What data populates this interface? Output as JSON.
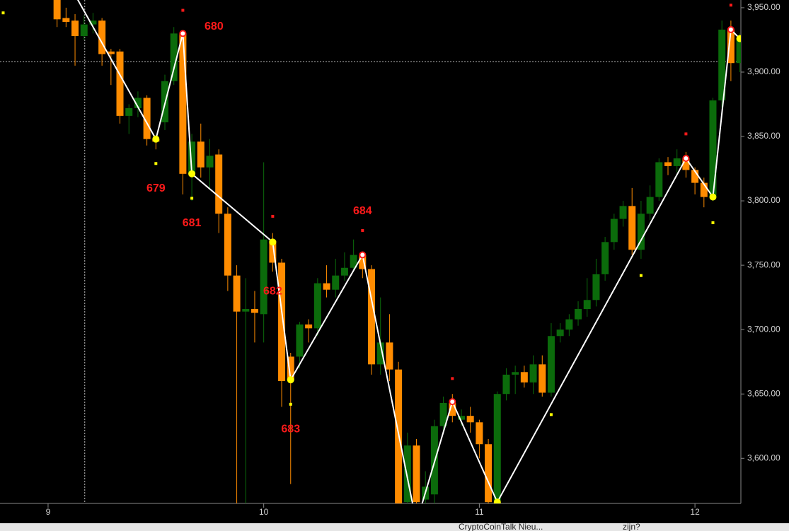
{
  "chart_data": {
    "type": "candlestick",
    "x": [
      9.0417,
      9.0833,
      9.125,
      9.1667,
      9.2083,
      9.25,
      9.2917,
      9.3333,
      9.375,
      9.4167,
      9.4583,
      9.5,
      9.5417,
      9.5833,
      9.625,
      9.6667,
      9.7083,
      9.75,
      9.7917,
      9.8333,
      9.875,
      9.9167,
      9.9583,
      10,
      10.0417,
      10.0833,
      10.125,
      10.1667,
      10.2083,
      10.25,
      10.2917,
      10.3333,
      10.375,
      10.4167,
      10.4583,
      10.5,
      10.5417,
      10.5833,
      10.625,
      10.6667,
      10.7083,
      10.75,
      10.7917,
      10.8333,
      10.875,
      10.9167,
      10.9583,
      11,
      11.0417,
      11.0833,
      11.125,
      11.1667,
      11.2083,
      11.25,
      11.2917,
      11.3333,
      11.375,
      11.4167,
      11.4583,
      11.5,
      11.5417,
      11.5833,
      11.625,
      11.6667,
      11.7083,
      11.75,
      11.7917,
      11.8333,
      11.875,
      11.9167,
      11.9583,
      12,
      12.0417,
      12.0833,
      12.125,
      12.1667,
      12.2083
    ],
    "open": [
      3957,
      3942,
      3940,
      3928,
      3937,
      3940,
      3916,
      3916,
      3866,
      3872,
      3880,
      3848,
      3861,
      3893,
      3930,
      3821,
      3846,
      3826,
      3836,
      3790,
      3742,
      3714,
      3716,
      3712,
      3769,
      3752,
      3679,
      3679,
      3704,
      3701,
      3736,
      3731,
      3742,
      3748,
      3758,
      3747,
      3673,
      3690,
      3669,
      3566,
      3610,
      3568,
      3572,
      3625,
      3643,
      3630,
      3633,
      3628,
      3611,
      3567,
      3650,
      3665,
      3667,
      3659,
      3673,
      3651,
      3695,
      3700,
      3708,
      3716,
      3723,
      3743,
      3768,
      3786,
      3796,
      3762,
      3790,
      3803,
      3830,
      3827,
      3833,
      3824,
      3814,
      3803,
      3878,
      3933,
      3907
    ],
    "high": [
      3960,
      3950,
      3945,
      3944,
      3946,
      3942,
      3918,
      3918,
      3875,
      3885,
      3882,
      3850,
      3898,
      3935,
      3932,
      3852,
      3860,
      3848,
      3840,
      3795,
      3750,
      3740,
      3730,
      3830,
      3775,
      3755,
      3682,
      3706,
      3708,
      3740,
      3750,
      3755,
      3760,
      3770,
      3760,
      3750,
      3725,
      3712,
      3675,
      3620,
      3615,
      3590,
      3630,
      3648,
      3650,
      3638,
      3640,
      3630,
      3615,
      3652,
      3670,
      3672,
      3672,
      3680,
      3680,
      3705,
      3705,
      3712,
      3722,
      3740,
      3755,
      3772,
      3790,
      3800,
      3810,
      3800,
      3812,
      3833,
      3834,
      3840,
      3838,
      3826,
      3818,
      3880,
      3940,
      3940,
      3930
    ],
    "low": [
      3935,
      3935,
      3905,
      3925,
      3930,
      3905,
      3890,
      3860,
      3852,
      3865,
      3843,
      3840,
      3855,
      3890,
      3805,
      3800,
      3818,
      3810,
      3775,
      3730,
      3565,
      3565,
      3690,
      3690,
      3745,
      3640,
      3580,
      3670,
      3690,
      3695,
      3725,
      3725,
      3738,
      3745,
      3740,
      3665,
      3665,
      3660,
      3565,
      3565,
      3565,
      3565,
      3565,
      3620,
      3628,
      3625,
      3620,
      3600,
      3565,
      3565,
      3645,
      3650,
      3655,
      3650,
      3648,
      3648,
      3690,
      3695,
      3703,
      3710,
      3718,
      3738,
      3762,
      3780,
      3758,
      3755,
      3785,
      3800,
      3820,
      3822,
      3818,
      3805,
      3795,
      3800,
      3872,
      3893,
      3900
    ],
    "close": [
      3941,
      3939,
      3928,
      3937,
      3940,
      3914,
      3914,
      3866,
      3872,
      3880,
      3848,
      3846,
      3893,
      3930,
      3821,
      3846,
      3826,
      3835,
      3790,
      3742,
      3714,
      3716,
      3713,
      3770,
      3752,
      3660,
      3661,
      3704,
      3701,
      3736,
      3731,
      3742,
      3748,
      3758,
      3747,
      3673,
      3690,
      3669,
      3565,
      3610,
      3566,
      3578,
      3625,
      3643,
      3633,
      3633,
      3628,
      3611,
      3566,
      3650,
      3665,
      3667,
      3659,
      3673,
      3651,
      3695,
      3700,
      3708,
      3716,
      3723,
      3743,
      3768,
      3786,
      3796,
      3762,
      3790,
      3803,
      3830,
      3827,
      3833,
      3824,
      3814,
      3803,
      3878,
      3933,
      3907,
      3926
    ],
    "up_color": "#0b6b0b",
    "down_color": "#ff8c00",
    "xlim": [
      8.777,
      12.213
    ],
    "xticks": [
      9,
      10,
      11,
      12
    ],
    "ylim": [
      3565,
      3956
    ],
    "yticks": [
      {
        "value": 3600,
        "label": "3,600.00"
      },
      {
        "value": 3650,
        "label": "3,650.00"
      },
      {
        "value": 3700,
        "label": "3,700.00"
      },
      {
        "value": 3750,
        "label": "3,750.00"
      },
      {
        "value": 3800,
        "label": "3,800.00"
      },
      {
        "value": 3850,
        "label": "3,850.00"
      },
      {
        "value": 3900,
        "label": "3,900.00"
      },
      {
        "value": 3950,
        "label": "3,950.00"
      }
    ],
    "zigzag": {
      "color": "#ffffff",
      "label_color": "#ff1a1a",
      "high_color": "#ff1a1a",
      "low_color": "#ffff00",
      "x": [
        9.125,
        9.5,
        9.625,
        9.6667,
        10.0417,
        10.125,
        10.4583,
        10.7083,
        10.875,
        11.0833,
        11.9583,
        12.0833,
        12.1667,
        12.2083
      ],
      "values": [
        3960,
        3848,
        3930,
        3821,
        3768,
        3661,
        3758,
        3550,
        3644,
        3566,
        3833,
        3803,
        3933,
        3926
      ],
      "point_labels": [
        null,
        "679",
        "680",
        "681",
        "682",
        "683",
        "684",
        null,
        null,
        null,
        null,
        null,
        null,
        null
      ]
    },
    "high_markers": {
      "color": "#ff1a1a",
      "x": [
        9.625,
        10.0417,
        10.4583,
        10.875,
        11.9583,
        12.1667
      ],
      "values": [
        3948,
        3788,
        3777,
        3662,
        3852,
        3952
      ]
    },
    "low_markers": {
      "color": "#ffff00",
      "x": [
        8.7917,
        9.5,
        9.6667,
        10.125,
        11.3333,
        11.75,
        12.0833
      ],
      "values": [
        3946,
        3829,
        3802,
        3642,
        3634,
        3742,
        3783
      ]
    },
    "crosshair": {
      "x": 9.17,
      "y": 3908
    }
  },
  "taskbar": {
    "items": [
      "CryptoCoinTalk Nieu...",
      "zijn?"
    ]
  }
}
